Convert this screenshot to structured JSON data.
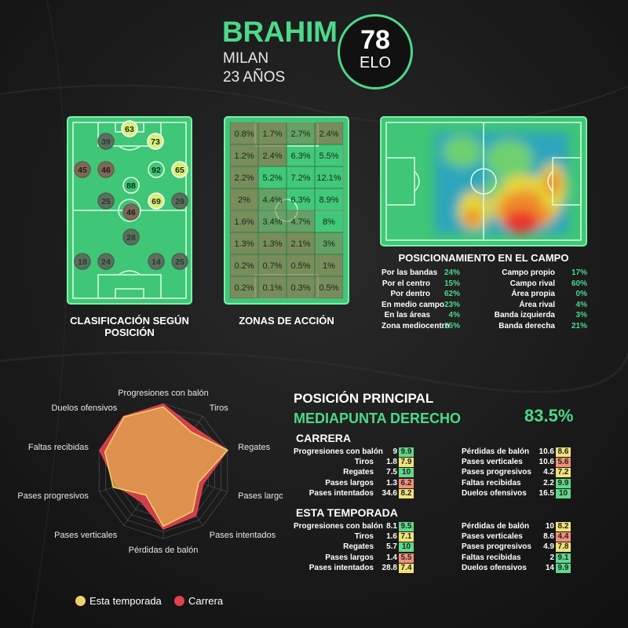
{
  "player": {
    "name": "BRAHIM",
    "club": "MILAN",
    "age": "23 AÑOS",
    "elo_value": "78",
    "elo_label": "ELO"
  },
  "colors": {
    "accent": "#4cd98a",
    "background": "#1a1a1a",
    "pitch": "#3fc676",
    "season": "#f2cf6b",
    "career": "#e0434f"
  },
  "position_pitch": {
    "caption": "CLASIFICACIÓN SEGÚN POSICIÓN",
    "values": [
      "63",
      "39",
      "73",
      "45",
      "46",
      "92",
      "65",
      "88",
      "25",
      "46",
      "69",
      "29",
      "28",
      "18",
      "24",
      "14",
      "25"
    ]
  },
  "zones_pitch": {
    "caption": "ZONAS DE ACCIÓN",
    "grid": [
      [
        "0.8%",
        "1.7%",
        "2.7%",
        "2.4%"
      ],
      [
        "1.2%",
        "2.4%",
        "6.3%",
        "5.5%"
      ],
      [
        "2.2%",
        "5.2%",
        "7.2%",
        "12.1%"
      ],
      [
        "2%",
        "4.4%",
        "6.3%",
        "8.9%"
      ],
      [
        "1.6%",
        "3.4%",
        "4.7%",
        "8%"
      ],
      [
        "1.3%",
        "1.3%",
        "2.1%",
        "3%"
      ],
      [
        "0.2%",
        "0.7%",
        "0.5%",
        "1%"
      ],
      [
        "0.2%",
        "0.1%",
        "0.3%",
        "0.5%"
      ]
    ]
  },
  "heatmap": {
    "caption": "POSICIONAMIENTO EN EL CAMPO",
    "left": [
      {
        "label": "Por las bandas",
        "value": "24%"
      },
      {
        "label": "Por el centro",
        "value": "15%"
      },
      {
        "label": "Por dentro",
        "value": "62%"
      },
      {
        "label": "En medio campo",
        "value": "23%"
      },
      {
        "label": "En las áreas",
        "value": "4%"
      },
      {
        "label": "Zona mediocentro",
        "value": "25%"
      }
    ],
    "right": [
      {
        "label": "Campo propio",
        "value": "17%"
      },
      {
        "label": "Campo rival",
        "value": "60%"
      },
      {
        "label": "Área propia",
        "value": "0%"
      },
      {
        "label": "Área rival",
        "value": "4%"
      },
      {
        "label": "Banda izquierda",
        "value": "3%"
      },
      {
        "label": "Banda derecha",
        "value": "21%"
      }
    ]
  },
  "radar": {
    "axes": [
      "Progresiones con balón",
      "Tiros",
      "Regates",
      "Pases largos",
      "Pases intentados",
      "Pérdidas de balón",
      "Pases verticales",
      "Pases progresivos",
      "Faltas recibidas",
      "Duelos ofensivos"
    ],
    "career": [
      9.9,
      7.9,
      10,
      6.2,
      8.2,
      8.6,
      5.6,
      7.2,
      9.9,
      10
    ],
    "season": [
      9.5,
      7.1,
      10,
      5.5,
      7.4,
      8.2,
      4.4,
      7.8,
      9.1,
      9.9
    ],
    "max": 10,
    "legend_season": "Esta temporada",
    "legend_career": "Carrera"
  },
  "main_position": {
    "title": "POSICIÓN PRINCIPAL",
    "position": "MEDIAPUNTA DERECHO",
    "percent": "83.5%"
  },
  "career_stats": {
    "title": "CARRERA",
    "left": [
      {
        "label": "Progresiones con balón",
        "value": "9",
        "score": "9.9"
      },
      {
        "label": "Tiros",
        "value": "1.8",
        "score": "7.9"
      },
      {
        "label": "Regates",
        "value": "7.5",
        "score": "10"
      },
      {
        "label": "Pases largos",
        "value": "1.3",
        "score": "6.2"
      },
      {
        "label": "Pases intentados",
        "value": "34.6",
        "score": "8.2"
      }
    ],
    "right": [
      {
        "label": "Pérdidas de balón",
        "value": "10.6",
        "score": "8.6"
      },
      {
        "label": "Pases verticales",
        "value": "10.6",
        "score": "5.6"
      },
      {
        "label": "Pases progresivos",
        "value": "4.2",
        "score": "7.2"
      },
      {
        "label": "Faltas recibidas",
        "value": "2.2",
        "score": "9.9"
      },
      {
        "label": "Duelos ofensivos",
        "value": "16.5",
        "score": "10"
      }
    ]
  },
  "season_stats": {
    "title": "ESTA TEMPORADA",
    "left": [
      {
        "label": "Progresiones con balón",
        "value": "8.1",
        "score": "9.5"
      },
      {
        "label": "Tiros",
        "value": "1.6",
        "score": "7.1"
      },
      {
        "label": "Regates",
        "value": "5.7",
        "score": "10"
      },
      {
        "label": "Pases largos",
        "value": "1.4",
        "score": "5.5"
      },
      {
        "label": "Pases intentados",
        "value": "28.8",
        "score": "7.4"
      }
    ],
    "right": [
      {
        "label": "Pérdidas de balón",
        "value": "10",
        "score": "8.2"
      },
      {
        "label": "Pases verticales",
        "value": "8.6",
        "score": "4.4"
      },
      {
        "label": "Pases progresivos",
        "value": "4.9",
        "score": "7.8"
      },
      {
        "label": "Faltas recibidas",
        "value": "2",
        "score": "9.1"
      },
      {
        "label": "Duelos ofensivos",
        "value": "14",
        "score": "9.9"
      }
    ]
  }
}
